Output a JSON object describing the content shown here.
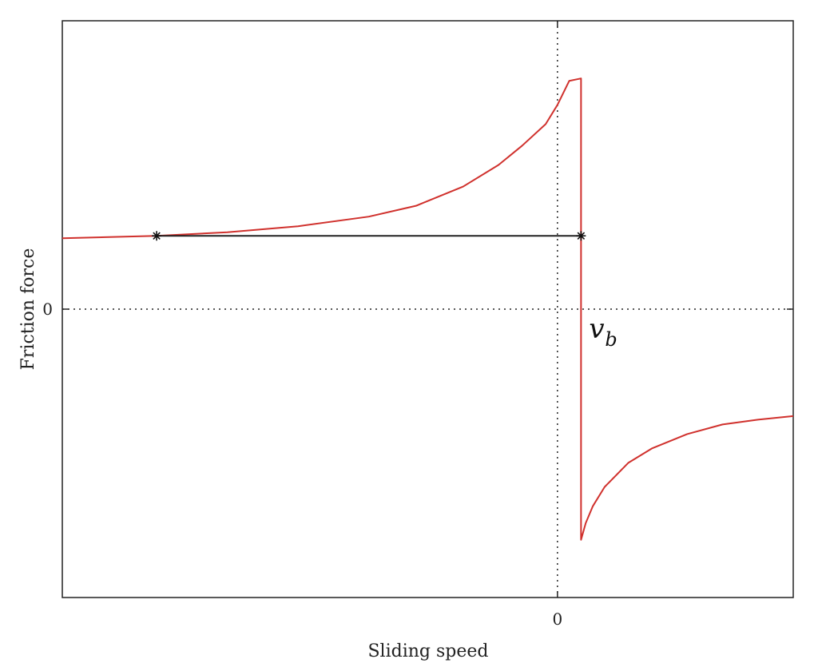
{
  "chart_data": {
    "type": "line",
    "title": "",
    "xlabel": "Sliding speed",
    "ylabel": "Friction force",
    "xlim": [
      -2.1,
      1.0
    ],
    "ylim": [
      -1.2,
      1.2
    ],
    "x_ticks": [
      {
        "value": 0,
        "label": "0"
      }
    ],
    "y_ticks": [
      {
        "value": 0,
        "label": "0"
      }
    ],
    "zero_lines": "dotted",
    "grid": false,
    "legend": "none",
    "annotation": {
      "text": "v",
      "subscript": "b",
      "x": 0.1
    },
    "series": [
      {
        "role": "friction-curve",
        "color": "#d0312d",
        "points": [
          [
            -2.1,
            0.295
          ],
          [
            -1.7,
            0.305
          ],
          [
            -1.4,
            0.32
          ],
          [
            -1.1,
            0.345
          ],
          [
            -0.8,
            0.385
          ],
          [
            -0.6,
            0.43
          ],
          [
            -0.4,
            0.51
          ],
          [
            -0.25,
            0.6
          ],
          [
            -0.15,
            0.68
          ],
          [
            -0.05,
            0.77
          ],
          [
            0.0,
            0.85
          ],
          [
            0.05,
            0.95
          ],
          [
            0.1,
            0.96
          ],
          [
            0.1,
            -0.96
          ],
          [
            0.12,
            -0.89
          ],
          [
            0.15,
            -0.82
          ],
          [
            0.2,
            -0.74
          ],
          [
            0.3,
            -0.64
          ],
          [
            0.4,
            -0.58
          ],
          [
            0.55,
            -0.52
          ],
          [
            0.7,
            -0.48
          ],
          [
            0.85,
            -0.46
          ],
          [
            1.0,
            -0.445
          ]
        ]
      },
      {
        "role": "equal-friction-segment",
        "color": "#222222",
        "points": [
          [
            -1.7,
            0.305
          ],
          [
            0.1,
            0.305
          ]
        ],
        "markers": "star"
      }
    ]
  }
}
